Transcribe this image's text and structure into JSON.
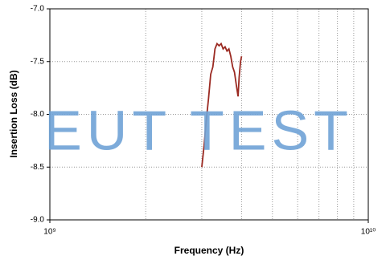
{
  "chart_data": {
    "type": "line",
    "x_label": "Frequency (Hz)",
    "y_label": "Insertion Loss (dB)",
    "watermark": "EUT TEST",
    "x_scale": "log",
    "grid": true,
    "xlim": [
      1000000000,
      10000000000
    ],
    "xticks": [
      {
        "value": 1000000000,
        "label": "10⁹"
      },
      {
        "value": 10000000000,
        "label": "10¹⁰"
      }
    ],
    "x_minor_ticks": [
      2000000000,
      3000000000,
      4000000000,
      5000000000,
      6000000000,
      7000000000,
      8000000000,
      9000000000
    ],
    "ylim": [
      -9,
      -7
    ],
    "yticks": [
      {
        "value": -9,
        "label": "-9.0"
      },
      {
        "value": -8.5,
        "label": "-8.5"
      },
      {
        "value": -8,
        "label": "-8.0"
      },
      {
        "value": -7.5,
        "label": "-7.5"
      },
      {
        "value": -7,
        "label": "-7.0"
      }
    ],
    "series": [
      {
        "color": "#9b2a22",
        "x": [
          3000000000,
          3050000000,
          3100000000,
          3150000000,
          3200000000,
          3250000000,
          3300000000,
          3350000000,
          3400000000,
          3450000000,
          3500000000,
          3550000000,
          3600000000,
          3650000000,
          3700000000,
          3750000000,
          3800000000,
          3850000000,
          3900000000,
          3930000000,
          3970000000,
          4000000000
        ],
        "values": [
          -8.5,
          -8.3,
          -8.05,
          -7.85,
          -7.62,
          -7.55,
          -7.38,
          -7.33,
          -7.35,
          -7.33,
          -7.38,
          -7.36,
          -7.4,
          -7.38,
          -7.45,
          -7.55,
          -7.6,
          -7.72,
          -7.83,
          -7.65,
          -7.5,
          -7.45
        ]
      }
    ]
  }
}
